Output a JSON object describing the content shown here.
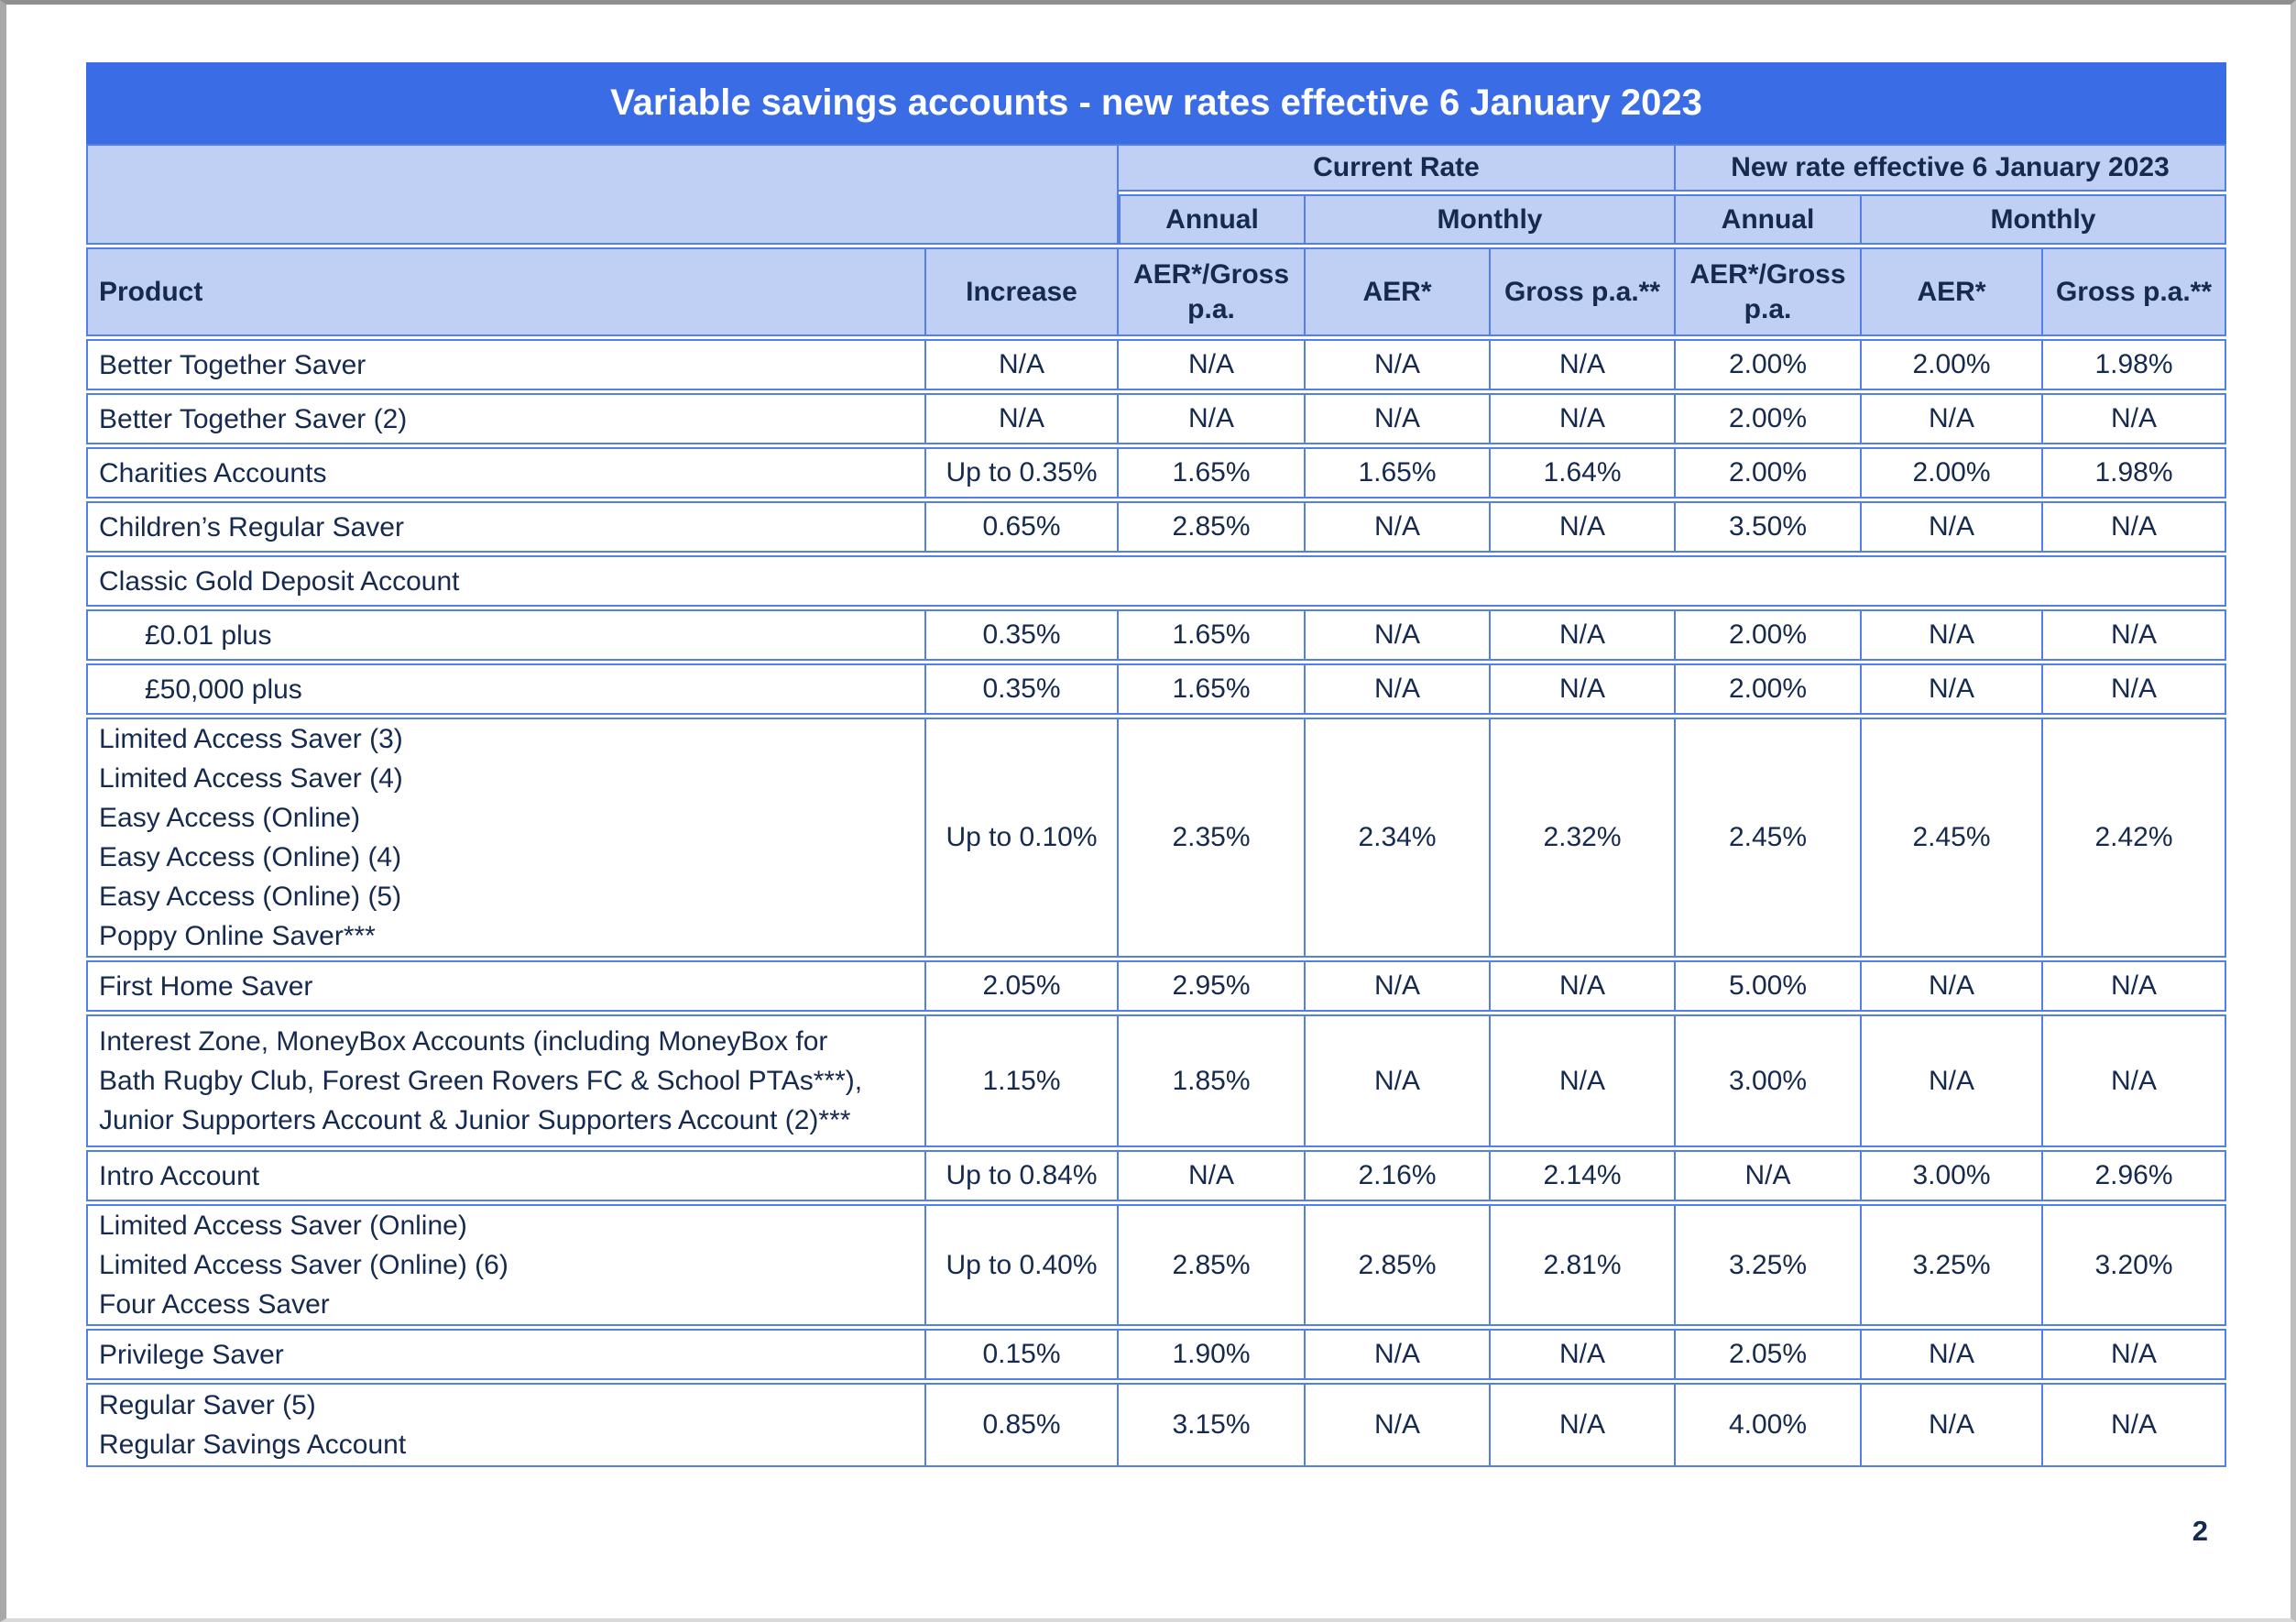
{
  "page": {
    "page_number": "2"
  },
  "table": {
    "title": "Variable savings accounts - new rates effective 6 January 2023",
    "header": {
      "current_rate": "Current Rate",
      "new_rate": "New rate effective 6 January 2023",
      "annual": "Annual",
      "monthly": "Monthly",
      "product": "Product",
      "increase": "Increase",
      "aer_gross": "AER*/Gross p.a.",
      "aer": "AER*",
      "gross": "Gross p.a.**"
    },
    "rows": [
      {
        "product_lines": [
          "Better Together Saver"
        ],
        "values": [
          "N/A",
          "N/A",
          "N/A",
          "N/A",
          "2.00%",
          "2.00%",
          "1.98%"
        ]
      },
      {
        "product_lines": [
          "Better Together Saver (2)"
        ],
        "values": [
          "N/A",
          "N/A",
          "N/A",
          "N/A",
          "2.00%",
          "N/A",
          "N/A"
        ]
      },
      {
        "product_lines": [
          "Charities Accounts"
        ],
        "values": [
          "Up to 0.35%",
          "1.65%",
          "1.65%",
          "1.64%",
          "2.00%",
          "2.00%",
          "1.98%"
        ]
      },
      {
        "product_lines": [
          "Children’s Regular Saver"
        ],
        "values": [
          "0.65%",
          "2.85%",
          "N/A",
          "N/A",
          "3.50%",
          "N/A",
          "N/A"
        ]
      },
      {
        "product_lines": [
          "Classic Gold Deposit Account"
        ],
        "spans_all_columns": true,
        "values": []
      },
      {
        "product_lines": [
          "£0.01 plus"
        ],
        "sub_item": true,
        "values": [
          "0.35%",
          "1.65%",
          "N/A",
          "N/A",
          "2.00%",
          "N/A",
          "N/A"
        ]
      },
      {
        "product_lines": [
          "£50,000 plus"
        ],
        "sub_item": true,
        "values": [
          "0.35%",
          "1.65%",
          "N/A",
          "N/A",
          "2.00%",
          "N/A",
          "N/A"
        ]
      },
      {
        "product_lines": [
          "Limited Access Saver (3)",
          "Limited Access Saver (4)",
          "Easy Access (Online)",
          "Easy Access (Online) (4)",
          "Easy Access (Online) (5)",
          "Poppy Online Saver***"
        ],
        "values": [
          "Up to 0.10%",
          "2.35%",
          "2.34%",
          "2.32%",
          "2.45%",
          "2.45%",
          "2.42%"
        ]
      },
      {
        "product_lines": [
          "First Home Saver"
        ],
        "values": [
          "2.05%",
          "2.95%",
          "N/A",
          "N/A",
          "5.00%",
          "N/A",
          "N/A"
        ]
      },
      {
        "product_lines": [
          "Interest Zone, MoneyBox Accounts (including MoneyBox for",
          "Bath Rugby Club, Forest Green Rovers FC & School PTAs***),",
          "Junior Supporters Account & Junior Supporters Account (2)***"
        ],
        "values": [
          "1.15%",
          "1.85%",
          "N/A",
          "N/A",
          "3.00%",
          "N/A",
          "N/A"
        ]
      },
      {
        "product_lines": [
          "Intro Account"
        ],
        "values": [
          "Up to 0.84%",
          "N/A",
          "2.16%",
          "2.14%",
          "N/A",
          "3.00%",
          "2.96%"
        ]
      },
      {
        "product_lines": [
          "Limited Access Saver (Online)",
          "Limited Access Saver (Online) (6)",
          "Four Access Saver"
        ],
        "values": [
          "Up to 0.40%",
          "2.85%",
          "2.85%",
          "2.81%",
          "3.25%",
          "3.25%",
          "3.20%"
        ]
      },
      {
        "product_lines": [
          "Privilege Saver"
        ],
        "values": [
          "0.15%",
          "1.90%",
          "N/A",
          "N/A",
          "2.05%",
          "N/A",
          "N/A"
        ]
      },
      {
        "product_lines": [
          "Regular Saver (5)",
          "Regular Savings Account"
        ],
        "values": [
          "0.85%",
          "3.15%",
          "N/A",
          "N/A",
          "4.00%",
          "N/A",
          "N/A"
        ]
      }
    ]
  }
}
